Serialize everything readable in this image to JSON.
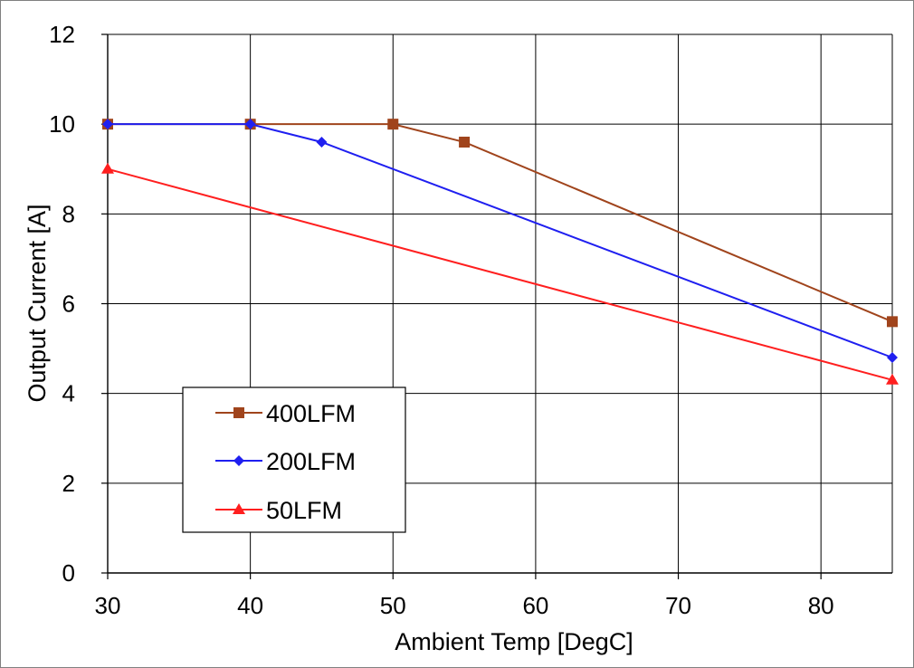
{
  "chart_data": {
    "type": "line",
    "title": "",
    "xlabel": "Ambient Temp [DegC]",
    "ylabel": "Output Current [A]",
    "xlim": [
      30,
      85
    ],
    "ylim": [
      0,
      12
    ],
    "xticks": [
      30,
      40,
      50,
      60,
      70,
      80
    ],
    "yticks": [
      0,
      2,
      4,
      6,
      8,
      10,
      12
    ],
    "xtick_labels": [
      "30",
      "40",
      "50",
      "60",
      "70",
      "80"
    ],
    "ytick_labels": [
      "0",
      "2",
      "4",
      "6",
      "8",
      "10",
      "12"
    ],
    "grid": true,
    "legend_position": "lower-left",
    "series": [
      {
        "name": "400LFM",
        "color": "#a0441c",
        "marker": "square",
        "x": [
          30,
          40,
          50,
          55,
          85
        ],
        "y": [
          10,
          10,
          10,
          9.6,
          5.6
        ]
      },
      {
        "name": "200LFM",
        "color": "#1f1ff0",
        "marker": "diamond",
        "x": [
          30,
          40,
          45,
          85
        ],
        "y": [
          10,
          10,
          9.6,
          4.8
        ]
      },
      {
        "name": "50LFM",
        "color": "#ff1f1f",
        "marker": "triangle",
        "x": [
          30,
          85
        ],
        "y": [
          9,
          4.3
        ]
      }
    ]
  }
}
